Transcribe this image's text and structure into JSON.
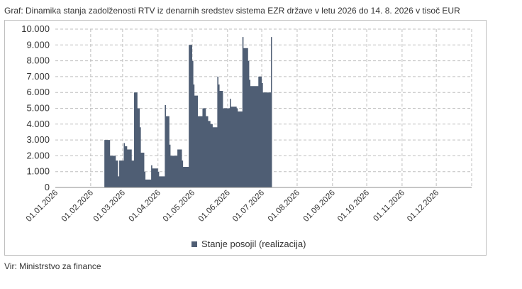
{
  "title": "Graf: Dinamika stanja zadolženosti RTV iz denarnih sredstev sistema EZR države v letu 2026 do 14. 8. 2026 v tisoč EUR",
  "source": "Vir: Ministrstvo za finance",
  "colors": {
    "series": "#4f5e74",
    "grid": "#bfbfbf",
    "axis": "#8c8c8c"
  },
  "chart_data": {
    "type": "area",
    "title": "Graf: Dinamika stanja zadolženosti RTV iz denarnih sredstev sistema EZR države v letu 2026 do 14. 8. 2026 v tisoč EUR",
    "xlabel": "",
    "ylabel": "",
    "ylim": [
      0,
      10000
    ],
    "yticks": [
      "0",
      "1.000",
      "2.000",
      "3.000",
      "4.000",
      "5.000",
      "6.000",
      "7.000",
      "8.000",
      "9.000",
      "10.000"
    ],
    "xticks": [
      "01.01.2026",
      "01.02.2026",
      "01.03.2026",
      "01.04.2026",
      "01.05.2026",
      "01.06.2026",
      "01.07.2026",
      "01.08.2026",
      "01.09.2026",
      "01.10.2026",
      "01.11.2026",
      "01.12.2026"
    ],
    "grid": true,
    "legend_position": "bottom",
    "series": [
      {
        "name": "Stanje posojil (realizacija)",
        "points": [
          [
            "2026-02-13",
            3000
          ],
          [
            "2026-02-17",
            3000
          ],
          [
            "2026-02-18",
            2000
          ],
          [
            "2026-02-22",
            2000
          ],
          [
            "2026-02-23",
            1700
          ],
          [
            "2026-02-25",
            700
          ],
          [
            "2026-02-26",
            1700
          ],
          [
            "2026-03-01",
            1700
          ],
          [
            "2026-03-02",
            2800
          ],
          [
            "2026-03-03",
            2600
          ],
          [
            "2026-03-04",
            2600
          ],
          [
            "2026-03-05",
            2400
          ],
          [
            "2026-03-08",
            2400
          ],
          [
            "2026-03-09",
            1700
          ],
          [
            "2026-03-10",
            1700
          ],
          [
            "2026-03-11",
            6000
          ],
          [
            "2026-03-13",
            6000
          ],
          [
            "2026-03-14",
            5000
          ],
          [
            "2026-03-15",
            5000
          ],
          [
            "2026-03-16",
            3800
          ],
          [
            "2026-03-17",
            2200
          ],
          [
            "2026-03-19",
            2200
          ],
          [
            "2026-03-20",
            1000
          ],
          [
            "2026-03-21",
            500
          ],
          [
            "2026-03-25",
            500
          ],
          [
            "2026-03-26",
            1400
          ],
          [
            "2026-03-27",
            1200
          ],
          [
            "2026-03-31",
            1200
          ],
          [
            "2026-04-01",
            1000
          ],
          [
            "2026-04-02",
            700
          ],
          [
            "2026-04-06",
            700
          ],
          [
            "2026-04-07",
            5200
          ],
          [
            "2026-04-08",
            4500
          ],
          [
            "2026-04-10",
            4500
          ],
          [
            "2026-04-11",
            2700
          ],
          [
            "2026-04-12",
            2000
          ],
          [
            "2026-04-17",
            2000
          ],
          [
            "2026-04-18",
            2400
          ],
          [
            "2026-04-21",
            2400
          ],
          [
            "2026-04-22",
            1700
          ],
          [
            "2026-04-23",
            1300
          ],
          [
            "2026-04-27",
            1300
          ],
          [
            "2026-04-28",
            9000
          ],
          [
            "2026-04-30",
            9000
          ],
          [
            "2026-05-01",
            8000
          ],
          [
            "2026-05-02",
            6500
          ],
          [
            "2026-05-03",
            5800
          ],
          [
            "2026-05-05",
            5800
          ],
          [
            "2026-05-06",
            4500
          ],
          [
            "2026-05-09",
            4500
          ],
          [
            "2026-05-10",
            5000
          ],
          [
            "2026-05-12",
            5000
          ],
          [
            "2026-05-13",
            4500
          ],
          [
            "2026-05-15",
            4200
          ],
          [
            "2026-05-17",
            4000
          ],
          [
            "2026-05-19",
            3800
          ],
          [
            "2026-05-22",
            3800
          ],
          [
            "2026-05-23",
            7000
          ],
          [
            "2026-05-24",
            6500
          ],
          [
            "2026-05-25",
            6100
          ],
          [
            "2026-05-27",
            6100
          ],
          [
            "2026-05-28",
            5000
          ],
          [
            "2026-06-02",
            5000
          ],
          [
            "2026-06-03",
            5600
          ],
          [
            "2026-06-04",
            5100
          ],
          [
            "2026-06-09",
            5000
          ],
          [
            "2026-06-10",
            4800
          ],
          [
            "2026-06-13",
            4800
          ],
          [
            "2026-06-14",
            9500
          ],
          [
            "2026-06-15",
            8800
          ],
          [
            "2026-06-18",
            8800
          ],
          [
            "2026-06-19",
            8000
          ],
          [
            "2026-06-20",
            6800
          ],
          [
            "2026-06-21",
            6400
          ],
          [
            "2026-06-27",
            6400
          ],
          [
            "2026-06-28",
            7000
          ],
          [
            "2026-06-30",
            7000
          ],
          [
            "2026-07-01",
            6600
          ],
          [
            "2026-07-02",
            6000
          ],
          [
            "2026-07-08",
            6000
          ],
          [
            "2026-07-09",
            9500
          ]
        ]
      }
    ]
  }
}
